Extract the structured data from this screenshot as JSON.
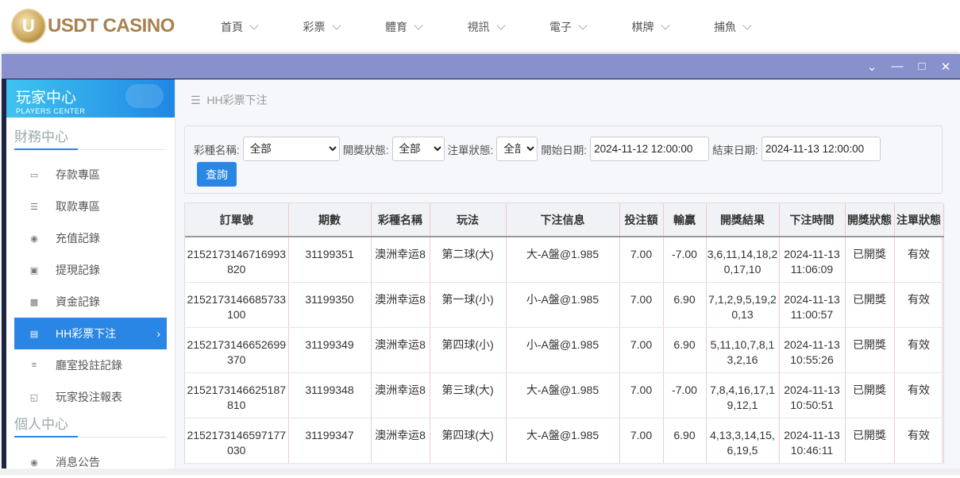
{
  "brand": {
    "logo_letter": "U",
    "name": "USDT CASINO"
  },
  "nav": [
    "首頁",
    "彩票",
    "體育",
    "視訊",
    "電子",
    "棋牌",
    "捕魚"
  ],
  "window_controls": [
    "chevron-down-icon",
    "minimize-icon",
    "maximize-icon",
    "close-icon"
  ],
  "sidebar": {
    "title": "玩家中心",
    "subtitle": "PLAYERS CENTER",
    "section1": "財務中心",
    "items": [
      {
        "label": "存款專區",
        "icon": "card-icon"
      },
      {
        "label": "取款專區",
        "icon": "hand-money-icon"
      },
      {
        "label": "充值記錄",
        "icon": "money-bag-icon"
      },
      {
        "label": "提現記錄",
        "icon": "wallet-icon"
      },
      {
        "label": "資金記錄",
        "icon": "safe-icon"
      },
      {
        "label": "HH彩票下注",
        "icon": "ticket-icon",
        "active": true
      },
      {
        "label": "廳室投註記錄",
        "icon": "list-icon"
      },
      {
        "label": "玩家投注報表",
        "icon": "chart-icon"
      }
    ],
    "section2": "個人中心",
    "items2": [
      {
        "label": "消息公告",
        "icon": "bell-icon"
      }
    ]
  },
  "breadcrumb": "HH彩票下注",
  "filter": {
    "lottery_label": "彩種名稱:",
    "lottery_value": "全部",
    "draw_status_label": "開獎狀態:",
    "draw_status_value": "全部",
    "bet_status_label": "注單狀態:",
    "bet_status_value": "全部",
    "start_label": "開始日期:",
    "start_value": "2024-11-12 12:00:00",
    "end_label": "結束日期:",
    "end_value": "2024-11-13 12:00:00",
    "query": "查詢"
  },
  "table": {
    "headers": [
      "訂單號",
      "期數",
      "彩種名稱",
      "玩法",
      "下注信息",
      "投注額",
      "輸贏",
      "開獎結果",
      "下注時間",
      "開獎狀態",
      "注單狀態"
    ],
    "rows": [
      [
        "2152173146716993820",
        "31199351",
        "澳洲幸运8",
        "第二球(大)",
        "大-A盤@1.985",
        "7.00",
        "-7.00",
        "3,6,11,14,18,20,17,10",
        "2024-11-13 11:06:09",
        "已開獎",
        "有效"
      ],
      [
        "2152173146685733100",
        "31199350",
        "澳洲幸运8",
        "第一球(小)",
        "小-A盤@1.985",
        "7.00",
        "6.90",
        "7,1,2,9,5,19,20,13",
        "2024-11-13 11:00:57",
        "已開獎",
        "有效"
      ],
      [
        "2152173146652699370",
        "31199349",
        "澳洲幸运8",
        "第四球(小)",
        "小-A盤@1.985",
        "7.00",
        "6.90",
        "5,11,10,7,8,13,2,16",
        "2024-11-13 10:55:26",
        "已開獎",
        "有效"
      ],
      [
        "2152173146625187810",
        "31199348",
        "澳洲幸运8",
        "第三球(大)",
        "大-A盤@1.985",
        "7.00",
        "-7.00",
        "7,8,4,16,17,19,12,1",
        "2024-11-13 10:50:51",
        "已開獎",
        "有效"
      ],
      [
        "2152173146597177030",
        "31199347",
        "澳洲幸运8",
        "第四球(大)",
        "大-A盤@1.985",
        "7.00",
        "6.90",
        "4,13,3,14,15,6,19,5",
        "2024-11-13 10:46:11",
        "已開獎",
        "有效"
      ]
    ]
  }
}
